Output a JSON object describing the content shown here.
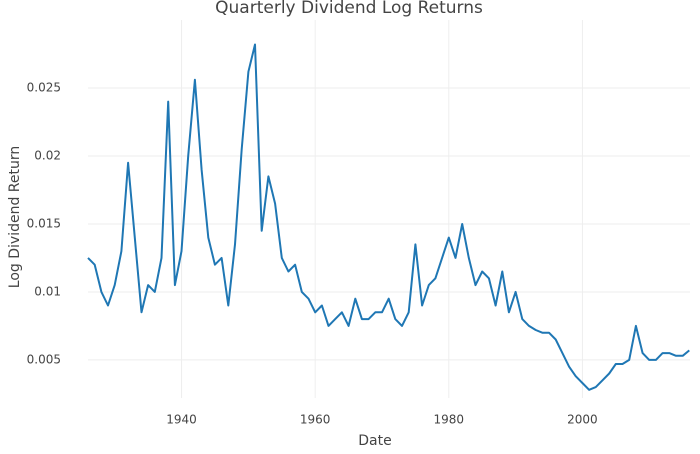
{
  "chart_data": {
    "type": "line",
    "title": "Quarterly Dividend Log Returns",
    "x_label": "Date",
    "y_label": "Log Dividend Return",
    "x": [
      1926,
      1927,
      1928,
      1929,
      1930,
      1931,
      1932,
      1933,
      1934,
      1935,
      1936,
      1937,
      1938,
      1939,
      1940,
      1941,
      1942,
      1943,
      1944,
      1945,
      1946,
      1947,
      1948,
      1949,
      1950,
      1951,
      1952,
      1953,
      1954,
      1955,
      1956,
      1957,
      1958,
      1959,
      1960,
      1961,
      1962,
      1963,
      1964,
      1965,
      1966,
      1967,
      1968,
      1969,
      1970,
      1971,
      1972,
      1973,
      1974,
      1975,
      1976,
      1977,
      1978,
      1979,
      1980,
      1981,
      1982,
      1983,
      1984,
      1985,
      1986,
      1987,
      1988,
      1989,
      1990,
      1991,
      1992,
      1993,
      1994,
      1995,
      1996,
      1997,
      1998,
      1999,
      2000,
      2001,
      2002,
      2003,
      2004,
      2005,
      2006,
      2007,
      2008,
      2009,
      2010,
      2011,
      2012,
      2013,
      2014,
      2015,
      2016
    ],
    "values": [
      0.0125,
      0.012,
      0.01,
      0.009,
      0.0105,
      0.013,
      0.0195,
      0.014,
      0.0085,
      0.0105,
      0.01,
      0.0125,
      0.024,
      0.0105,
      0.013,
      0.02,
      0.0256,
      0.019,
      0.014,
      0.012,
      0.0125,
      0.009,
      0.0135,
      0.0205,
      0.0262,
      0.0282,
      0.0145,
      0.0185,
      0.0165,
      0.0125,
      0.0115,
      0.012,
      0.01,
      0.0095,
      0.0085,
      0.009,
      0.0075,
      0.008,
      0.0085,
      0.0075,
      0.0095,
      0.008,
      0.008,
      0.0085,
      0.0085,
      0.0095,
      0.008,
      0.0075,
      0.0085,
      0.0135,
      0.009,
      0.0105,
      0.011,
      0.0125,
      0.014,
      0.0125,
      0.015,
      0.0125,
      0.0105,
      0.0115,
      0.011,
      0.009,
      0.0115,
      0.0085,
      0.01,
      0.008,
      0.0075,
      0.0072,
      0.007,
      0.007,
      0.0065,
      0.0055,
      0.0045,
      0.0038,
      0.0033,
      0.0028,
      0.003,
      0.0035,
      0.004,
      0.0047,
      0.0047,
      0.005,
      0.0075,
      0.0055,
      0.005,
      0.005,
      0.0055,
      0.0055,
      0.0053,
      0.0053,
      0.0057
    ],
    "color": "#1f77b4",
    "xlim": [
      1926,
      2016.1
    ],
    "ylim": [
      0.0022,
      0.03
    ],
    "xticks": [
      1940,
      1960,
      1980,
      2000
    ],
    "yticks": [
      0.005,
      0.01,
      0.015,
      0.02,
      0.025
    ],
    "grid": true
  }
}
